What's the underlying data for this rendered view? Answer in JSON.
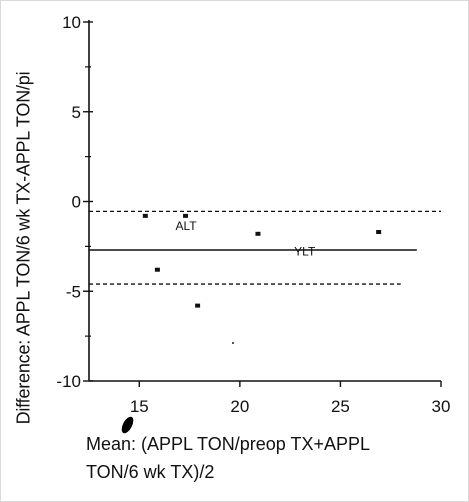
{
  "chart_data": {
    "type": "scatter",
    "xlabel": [
      "Mean: (APPL TON/preop TX+APPL",
      "TON/6 wk TX)/2"
    ],
    "ylabel": "Difference: APPL TON/6 wk TX-APPL TON/pi",
    "xlim": [
      12.5,
      30
    ],
    "ylim": [
      -10,
      10
    ],
    "x_ticks": [
      15,
      20,
      25,
      30
    ],
    "y_ticks": [
      10,
      5,
      0,
      -5,
      -10
    ],
    "y_minor_ticks": [
      7.5,
      2.5,
      -2.5,
      -7.5
    ],
    "points": [
      {
        "x": 15.3,
        "y": -0.8
      },
      {
        "x": 17.3,
        "y": -0.8
      },
      {
        "x": 20.9,
        "y": -1.8
      },
      {
        "x": 26.9,
        "y": -1.7
      },
      {
        "x": 15.9,
        "y": -3.8
      },
      {
        "x": 17.9,
        "y": -5.8
      }
    ],
    "reference_lines": [
      {
        "style": "dashed",
        "y": -0.55,
        "x_start": 12.5,
        "x_end": 30
      },
      {
        "style": "solid",
        "y": -2.7,
        "x_start": 12.5,
        "x_end": 28.8
      },
      {
        "style": "dashed",
        "y": -4.6,
        "x_start": 12.5,
        "x_end": 28
      }
    ],
    "annotations": [
      {
        "text": "ALT",
        "x": 16.8,
        "y": -1.6
      },
      {
        "text": "YLT",
        "x": 22.7,
        "y": -3.0
      }
    ],
    "grid": false,
    "legend": "none"
  }
}
